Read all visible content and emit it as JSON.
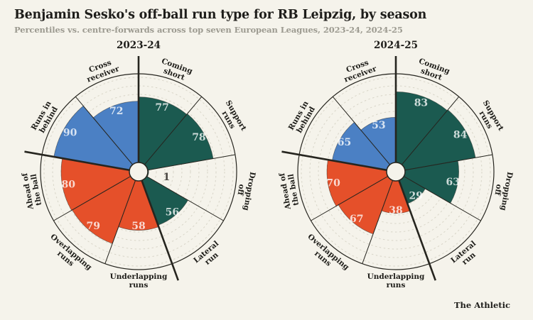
{
  "page": {
    "title": "Benjamin Sesko's off-ball run type for RB Leipzig, by season",
    "subtitle": "Percentiles vs. centre-forwards across top seven European Leagues, 2023-24, 2024-25",
    "brand": "The Athletic"
  },
  "colors": {
    "background": "#F5F3EB",
    "line": "#26251F",
    "grid_dash": "#D8D5C8",
    "title_text": "#1E1D1A",
    "subtitle_text": "#9C9A90",
    "category_label": "#1D1C18",
    "value_label_light": "rgba(255,255,255,0.78)",
    "value_label_dark": "#4A4742",
    "group_colors": {
      "teal": "#1B5A50",
      "orange": "#E5502A",
      "blue": "#4B80C4"
    }
  },
  "chart_data": [
    {
      "type": "radial-bar",
      "title": "2023-24",
      "unit": "percentile",
      "rlim": [
        0,
        100
      ],
      "grid_step": 10,
      "categories": [
        "Coming short",
        "Support runs",
        "Dropping off",
        "Lateral run",
        "Underlapping runs",
        "Overlapping runs",
        "Ahead of the ball",
        "Runs in behind",
        "Cross receiver"
      ],
      "values": [
        77,
        78,
        1,
        56,
        58,
        79,
        80,
        90,
        72
      ],
      "groups": [
        "teal",
        "teal",
        "teal",
        "teal",
        "orange",
        "orange",
        "orange",
        "blue",
        "blue"
      ]
    },
    {
      "type": "radial-bar",
      "title": "2024-25",
      "unit": "percentile",
      "rlim": [
        0,
        100
      ],
      "grid_step": 10,
      "categories": [
        "Coming short",
        "Support runs",
        "Dropping off",
        "Lateral run",
        "Underlapping runs",
        "Overlapping runs",
        "Ahead of the ball",
        "Runs in behind",
        "Cross receiver"
      ],
      "values": [
        83,
        84,
        63,
        29,
        38,
        67,
        70,
        65,
        53
      ],
      "groups": [
        "teal",
        "teal",
        "teal",
        "teal",
        "orange",
        "orange",
        "orange",
        "blue",
        "blue"
      ]
    }
  ]
}
